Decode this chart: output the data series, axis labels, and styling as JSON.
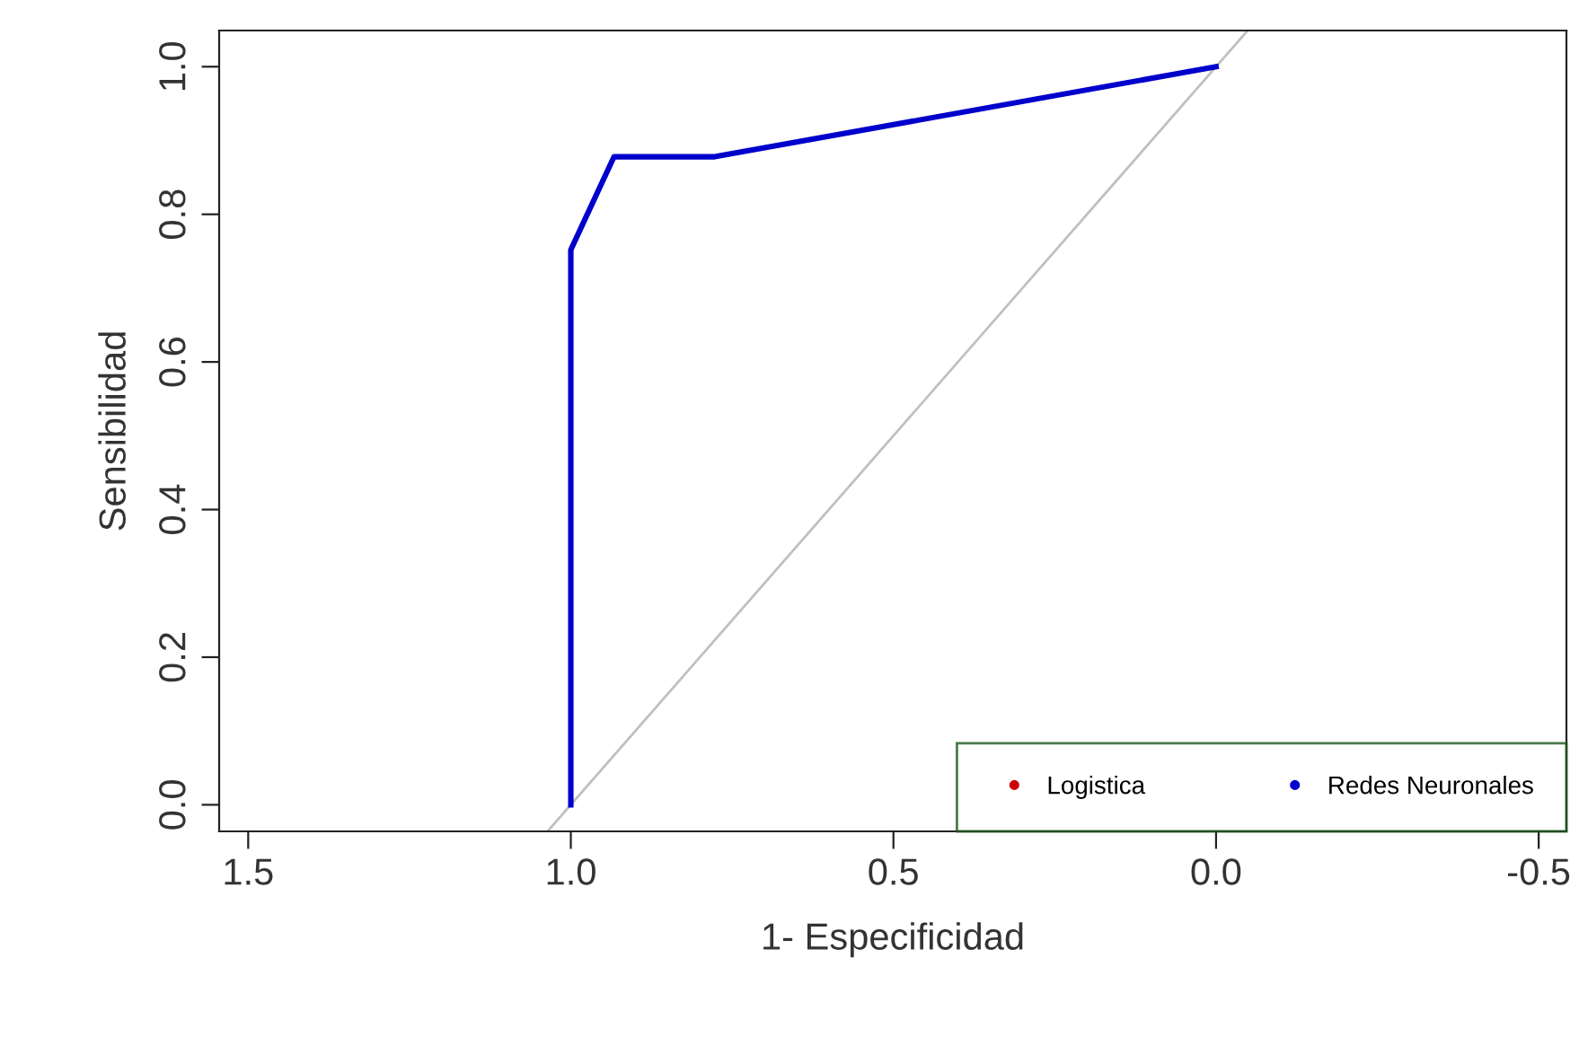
{
  "chart_data": {
    "type": "line",
    "xlabel": "1- Especificidad",
    "ylabel": "Sensibilidad",
    "xlim": [
      1.545,
      -0.543
    ],
    "ylim": [
      -0.036,
      1.049
    ],
    "xticks": [
      {
        "value": 1.5,
        "label": "1.5"
      },
      {
        "value": 1.0,
        "label": "1.0"
      },
      {
        "value": 0.5,
        "label": "0.5"
      },
      {
        "value": 0.0,
        "label": "0.0"
      },
      {
        "value": -0.5,
        "label": "-0.5"
      }
    ],
    "yticks": [
      {
        "value": 0.0,
        "label": "0.0"
      },
      {
        "value": 0.2,
        "label": "0.2"
      },
      {
        "value": 0.4,
        "label": "0.4"
      },
      {
        "value": 0.6,
        "label": "0.6"
      },
      {
        "value": 0.8,
        "label": "0.8"
      },
      {
        "value": 1.0,
        "label": "1.0"
      }
    ],
    "grid": false,
    "legend": "bottom right",
    "marker": "none",
    "line_style": "solid",
    "series": [
      {
        "type": "line",
        "color": "#c0c0c0",
        "x": [
          1.036,
          -0.049
        ],
        "values": [
          -0.036,
          1.049
        ]
      },
      {
        "name": "Logistica",
        "color": "#cc0000"
      },
      {
        "name": "Redes Neuronales",
        "color": "#0000cc",
        "x": [
          1.0,
          1.0,
          0.933,
          0.777,
          0.0
        ],
        "values": [
          0.0,
          0.752,
          0.878,
          0.878,
          1.0
        ]
      }
    ]
  }
}
